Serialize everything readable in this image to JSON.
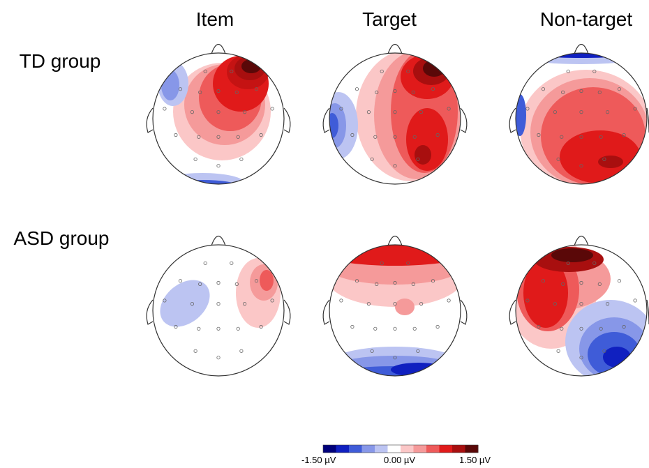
{
  "columns": [
    "Item",
    "Target",
    "Non-target"
  ],
  "rows": [
    "TD group",
    "ASD group"
  ],
  "colorbar": {
    "min_label": "-1.50 µV",
    "mid_label": "0.00 µV",
    "max_label": "1.50 µV",
    "colors": [
      "#00007a",
      "#1020c0",
      "#3f5cd8",
      "#8797e8",
      "#bcc4f2",
      "#ffffff",
      "#fbc7c7",
      "#f59a9a",
      "#ee5a5a",
      "#e01a1a",
      "#a80f0f",
      "#5a0808"
    ]
  }
}
